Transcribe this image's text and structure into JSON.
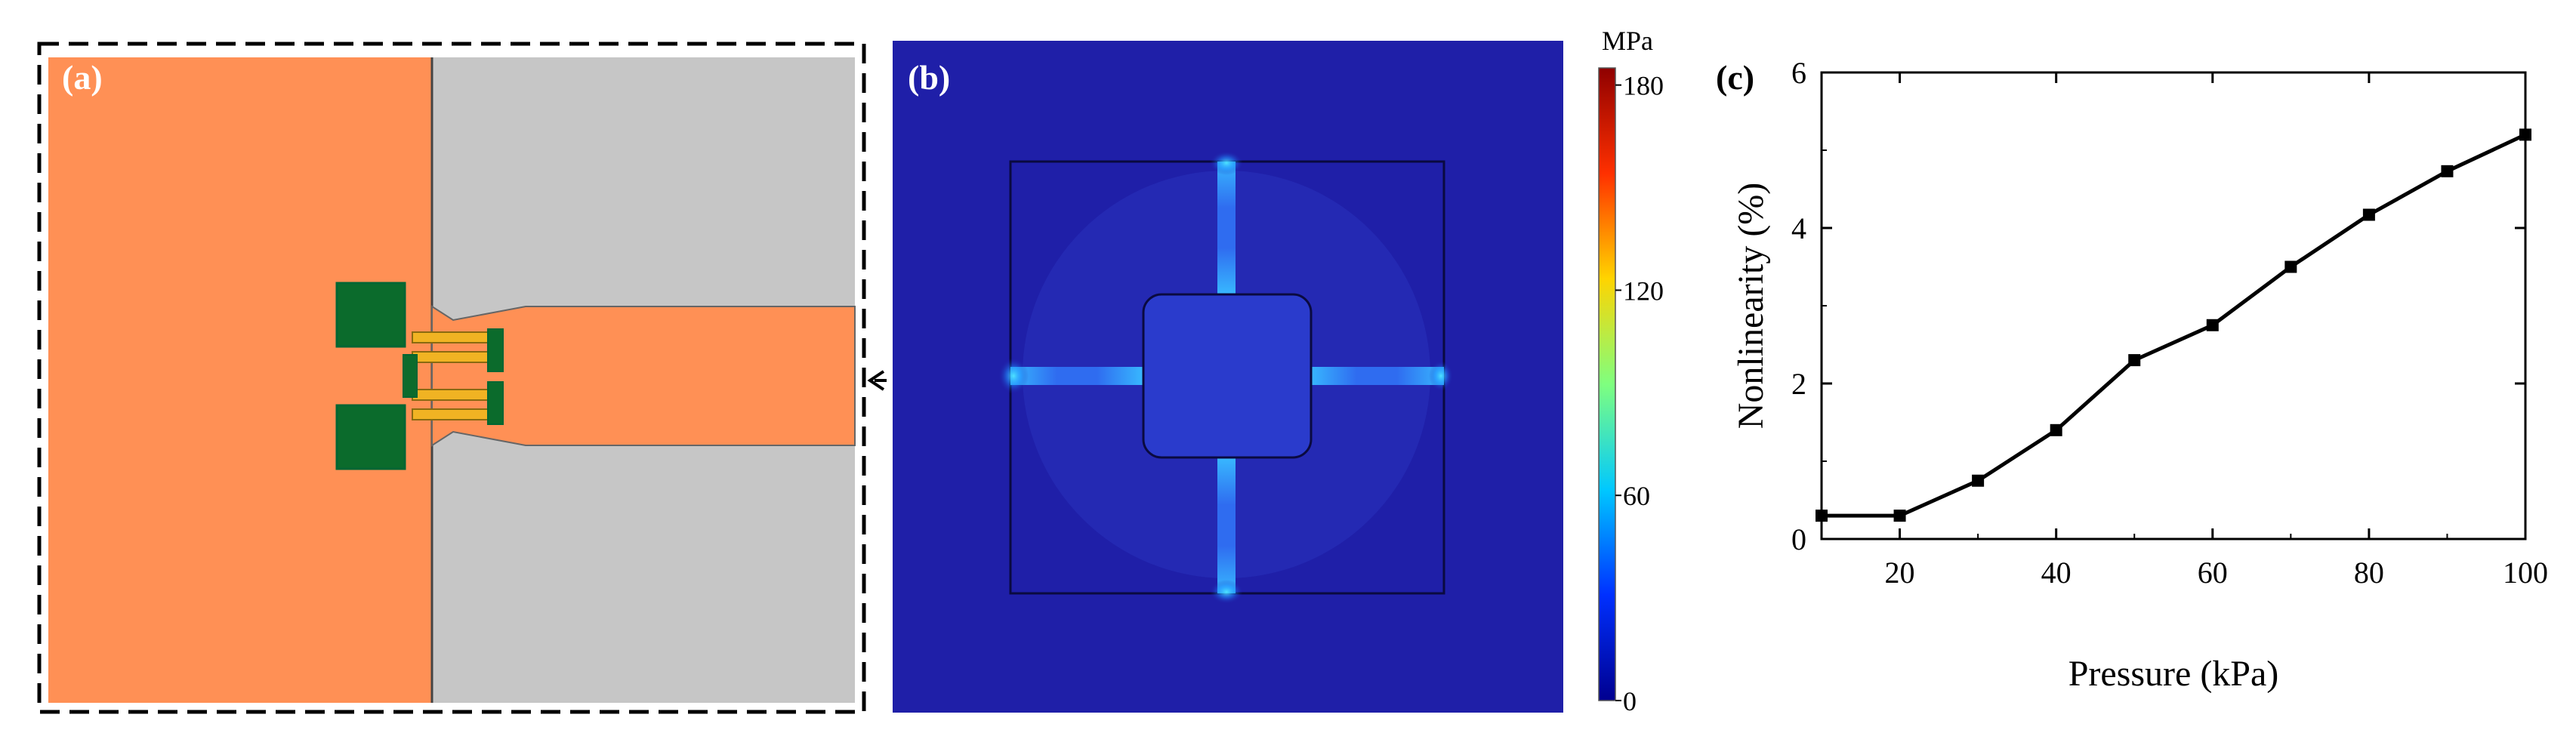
{
  "panels": {
    "a": {
      "label": "(a)"
    },
    "b": {
      "label": "(b)"
    },
    "c": {
      "label": "(c)"
    }
  },
  "colorbar": {
    "unit": "MPa",
    "ticks": [
      "180",
      "120",
      "60",
      "0"
    ],
    "tick_values": [
      180,
      120,
      60,
      0
    ],
    "range": [
      0,
      185
    ],
    "colors": [
      "#00008f",
      "#0030ff",
      "#00c8ff",
      "#7fff7f",
      "#ffd400",
      "#ff3000",
      "#8f0000"
    ]
  },
  "colors": {
    "orange_material": "#FF9055",
    "gray_material": "#C6C6C6",
    "green_pad": "#0B6B2C",
    "yellow_resistor": "#F0B323",
    "stress_background": "#1F1FA8"
  },
  "chart_data": {
    "type": "line",
    "x": [
      10,
      20,
      30,
      40,
      50,
      60,
      70,
      80,
      90,
      100
    ],
    "series": [
      {
        "values": [
          0.3,
          0.3,
          0.75,
          1.4,
          2.3,
          2.75,
          3.5,
          4.17,
          4.73,
          5.2
        ]
      }
    ],
    "xlabel": "Pressure (kPa)",
    "ylabel": "Nonlinearity (%)",
    "xlim": [
      10,
      100
    ],
    "ylim": [
      0,
      6
    ],
    "xticks": [
      20,
      40,
      60,
      80,
      100
    ],
    "yticks": [
      0,
      2,
      4,
      6
    ],
    "marker": "square",
    "grid": false
  }
}
